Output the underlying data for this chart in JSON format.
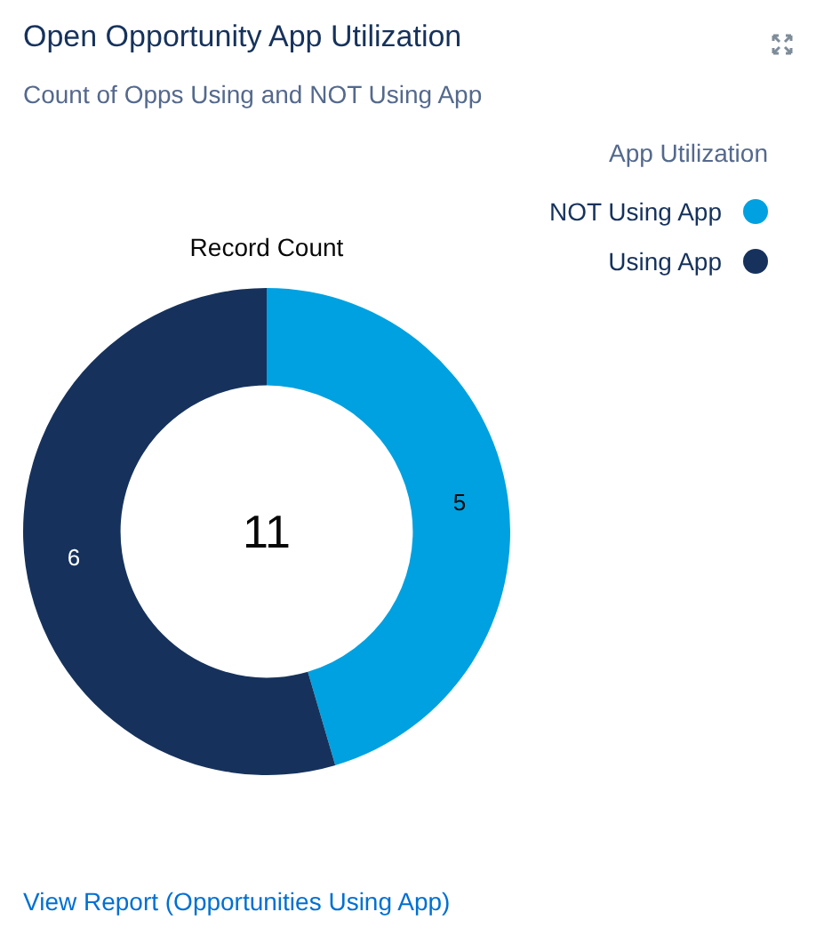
{
  "chart_data": {
    "type": "donut",
    "title": "Open Opportunity App Utilization",
    "subtitle": "Count of Opps Using and NOT Using App",
    "legend_title": "App Utilization",
    "legend": "top right",
    "categories": [
      "NOT Using App",
      "Using App"
    ],
    "values": [
      5,
      6
    ],
    "colors": [
      "#00a1e0",
      "#16325c"
    ],
    "data_labels": true,
    "annotations": [
      "Record Count",
      "11",
      "View Report (Opportunities Using App)"
    ]
  }
}
